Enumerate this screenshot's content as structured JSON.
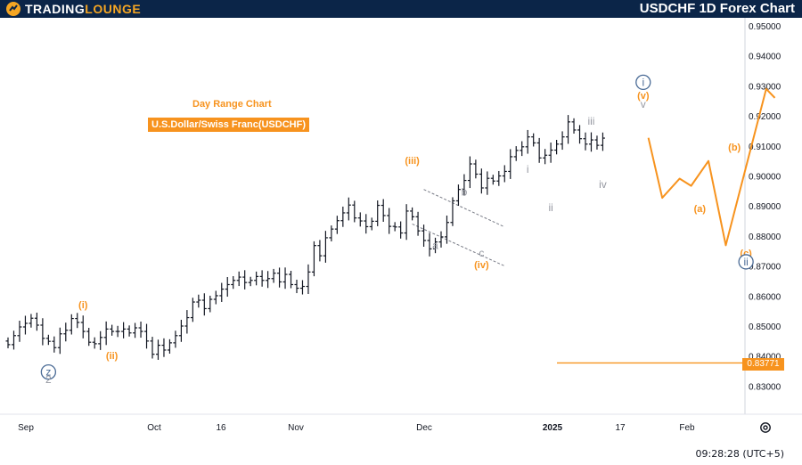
{
  "header": {
    "brand_word1": "TRADING",
    "brand_word2": "LOUNGE",
    "title": "USDCHF 1D Forex Chart",
    "logo_icon": "tradinglounge-logo-icon"
  },
  "chart_title": {
    "subtitle": "Day Range Chart",
    "pair": "U.S.Dollar/Swiss Franc(USDCHF)"
  },
  "price_tag": "0.83771",
  "timestamp": "09:28:28 (UTC+5)",
  "settings_icon": "gear-icon",
  "colors": {
    "header_bg": "#0b2548",
    "accent": "#f7931e",
    "wave_navy": "#4a6b96",
    "wave_grey": "#9598a1",
    "candle": "#131722"
  },
  "chart_data": {
    "type": "candlestick",
    "x_tick_labels": [
      "Sep",
      "Oct",
      "16",
      "Nov",
      "Dec",
      "2025",
      "17",
      "Feb"
    ],
    "y_tick_labels": [
      "0.95000",
      "0.94000",
      "0.93000",
      "0.92000",
      "0.91000",
      "0.90000",
      "0.89000",
      "0.88000",
      "0.87000",
      "0.86000",
      "0.85000",
      "0.84000",
      "0.83000"
    ],
    "ylim": [
      0.827,
      0.953
    ],
    "last_price": 0.83771,
    "closes": [
      0.8438,
      0.8468,
      0.8497,
      0.8509,
      0.8526,
      0.8503,
      0.8459,
      0.8449,
      0.8428,
      0.8474,
      0.8486,
      0.8525,
      0.8512,
      0.8482,
      0.8446,
      0.8441,
      0.8462,
      0.849,
      0.8482,
      0.8482,
      0.849,
      0.8477,
      0.8494,
      0.8482,
      0.845,
      0.8406,
      0.8436,
      0.842,
      0.8444,
      0.8468,
      0.85,
      0.8528,
      0.858,
      0.8586,
      0.8558,
      0.8589,
      0.8601,
      0.8623,
      0.8638,
      0.8652,
      0.8663,
      0.8645,
      0.8652,
      0.8665,
      0.8652,
      0.8658,
      0.8676,
      0.8647,
      0.8672,
      0.8638,
      0.8626,
      0.8632,
      0.868,
      0.8768,
      0.8734,
      0.8794,
      0.8823,
      0.8851,
      0.8877,
      0.8903,
      0.886,
      0.885,
      0.8831,
      0.8849,
      0.8902,
      0.8868,
      0.8832,
      0.883,
      0.881,
      0.8883,
      0.8864,
      0.8817,
      0.8785,
      0.8757,
      0.878,
      0.8797,
      0.8845,
      0.8917,
      0.8955,
      0.8985,
      0.904,
      0.9006,
      0.896,
      0.8992,
      0.8983,
      0.9,
      0.9015,
      0.9064,
      0.9085,
      0.9097,
      0.913,
      0.911,
      0.906,
      0.9069,
      0.9086,
      0.9106,
      0.913,
      0.918,
      0.9153,
      0.9124,
      0.9106,
      0.912,
      0.9102,
      0.9126
    ],
    "projection": [
      [
        0.9127,
        0.91
      ],
      [
        0.8927,
        0.892
      ],
      [
        0.8991,
        0.9
      ],
      [
        0.8967,
        0.8965
      ],
      [
        0.905,
        0.905
      ],
      [
        0.8769,
        0.8765
      ],
      [
        0.929,
        0.9296
      ],
      [
        0.926,
        0.9265
      ]
    ],
    "wave_labels": [
      {
        "text": "z",
        "color": "navy",
        "circled": true,
        "idx": 7,
        "price": 0.8335
      },
      {
        "text": "2",
        "color": "grey",
        "idx": 7,
        "price": 0.831
      },
      {
        "text": "(i)",
        "color": "orange",
        "idx": 13,
        "price": 0.856
      },
      {
        "text": "(ii)",
        "color": "orange",
        "idx": 18,
        "price": 0.839
      },
      {
        "text": "(iii)",
        "color": "orange",
        "idx": 70,
        "price": 0.904
      },
      {
        "text": "a",
        "color": "grey",
        "idx": 74,
        "price": 0.8757
      },
      {
        "text": "b",
        "color": "grey",
        "idx": 79,
        "price": 0.8935
      },
      {
        "text": "c",
        "color": "grey",
        "idx": 82,
        "price": 0.8732
      },
      {
        "text": "(iv)",
        "color": "orange",
        "idx": 82,
        "price": 0.8693
      },
      {
        "text": "i",
        "color": "grey",
        "idx": 90,
        "price": 0.901
      },
      {
        "text": "ii",
        "color": "grey",
        "idx": 94,
        "price": 0.8883
      },
      {
        "text": "iii",
        "color": "grey",
        "idx": 101,
        "price": 0.917
      },
      {
        "text": "iv",
        "color": "grey",
        "idx": 103,
        "price": 0.896
      },
      {
        "text": "i",
        "color": "navy",
        "circled": true,
        "idx": 110,
        "price": 0.93
      },
      {
        "text": "(v)",
        "color": "orange",
        "idx": 110,
        "price": 0.9257
      },
      {
        "text": "v",
        "color": "grey",
        "idx": 110,
        "price": 0.9227
      },
      {
        "text": "(a)",
        "color": "orange",
        "price": 0.888,
        "xi": 119
      },
      {
        "text": "(b)",
        "color": "orange",
        "price": 0.9085,
        "xi": 125
      },
      {
        "text": "(c)",
        "color": "orange",
        "price": 0.8732,
        "xi": 127
      },
      {
        "text": "ii",
        "color": "navy",
        "circled": true,
        "price": 0.8702,
        "xi": 127
      }
    ],
    "channel": {
      "upper": [
        [
          72,
          0.8955
        ],
        [
          86,
          0.883
        ]
      ],
      "lower": [
        [
          70,
          0.884
        ],
        [
          86,
          0.87
        ]
      ]
    }
  }
}
